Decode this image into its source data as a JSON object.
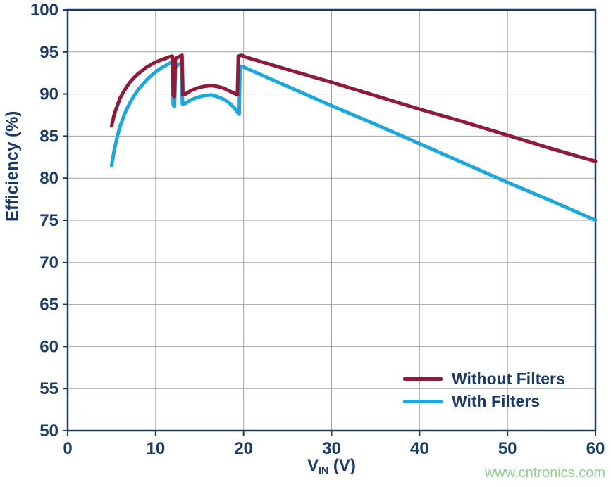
{
  "colors": {
    "axis": "#1a3a67",
    "grid": "#a3a3a3",
    "watermark": "#8fd08f",
    "background": "#ffffff"
  },
  "watermark": {
    "text": "www.cntronics.com"
  },
  "chart_data": {
    "type": "line",
    "title": "",
    "xlabel": {
      "main": "V",
      "sub": "IN",
      "unit": " (V)"
    },
    "ylabel": "Efficiency (%)",
    "xlim": [
      0,
      60
    ],
    "ylim": [
      50,
      100
    ],
    "x_ticks": [
      0,
      10,
      20,
      30,
      40,
      50,
      60
    ],
    "y_ticks": [
      50,
      55,
      60,
      65,
      70,
      75,
      80,
      85,
      90,
      95,
      100
    ],
    "grid": true,
    "legend_position": "bottom-right",
    "series": [
      {
        "name": "Without Filters",
        "color": "#8e1b3a",
        "points": [
          [
            5,
            86.2
          ],
          [
            5.3,
            87.6
          ],
          [
            5.7,
            88.8
          ],
          [
            6,
            89.6
          ],
          [
            6.5,
            90.5
          ],
          [
            7,
            91.3
          ],
          [
            7.5,
            91.9
          ],
          [
            8,
            92.4
          ],
          [
            8.5,
            92.8
          ],
          [
            9,
            93.2
          ],
          [
            9.5,
            93.5
          ],
          [
            10,
            93.8
          ],
          [
            10.5,
            94.0
          ],
          [
            11,
            94.2
          ],
          [
            11.5,
            94.4
          ],
          [
            11.9,
            94.5
          ],
          [
            12.0,
            89.9
          ],
          [
            12.15,
            89.7
          ],
          [
            12.25,
            94.2
          ],
          [
            12.6,
            94.4
          ],
          [
            13.0,
            94.6
          ],
          [
            13.1,
            89.9
          ],
          [
            13.4,
            90.0
          ],
          [
            14,
            90.4
          ],
          [
            14.7,
            90.7
          ],
          [
            15.5,
            90.9
          ],
          [
            16.3,
            91.0
          ],
          [
            17,
            90.9
          ],
          [
            17.7,
            90.7
          ],
          [
            18.3,
            90.4
          ],
          [
            18.9,
            90.1
          ],
          [
            19.3,
            89.9
          ],
          [
            19.4,
            94.5
          ],
          [
            19.8,
            94.6
          ],
          [
            20.2,
            94.4
          ],
          [
            25,
            92.9
          ],
          [
            30,
            91.4
          ],
          [
            35,
            89.8
          ],
          [
            40,
            88.2
          ],
          [
            45,
            86.7
          ],
          [
            50,
            85.1
          ],
          [
            55,
            83.5
          ],
          [
            60,
            82.0
          ]
        ]
      },
      {
        "name": "With Filters",
        "color": "#1ea7dd",
        "points": [
          [
            5,
            81.5
          ],
          [
            5.3,
            83.4
          ],
          [
            5.7,
            85.2
          ],
          [
            6,
            86.3
          ],
          [
            6.5,
            87.7
          ],
          [
            7,
            88.8
          ],
          [
            7.5,
            89.7
          ],
          [
            8,
            90.5
          ],
          [
            8.5,
            91.1
          ],
          [
            9,
            91.7
          ],
          [
            9.5,
            92.2
          ],
          [
            10,
            92.6
          ],
          [
            10.5,
            93.0
          ],
          [
            11,
            93.3
          ],
          [
            11.5,
            93.6
          ],
          [
            11.9,
            93.8
          ],
          [
            12.0,
            88.7
          ],
          [
            12.15,
            88.5
          ],
          [
            12.25,
            93.2
          ],
          [
            12.6,
            93.5
          ],
          [
            12.95,
            93.7
          ],
          [
            13.05,
            88.8
          ],
          [
            13.4,
            88.9
          ],
          [
            14,
            89.3
          ],
          [
            14.7,
            89.6
          ],
          [
            15.5,
            89.8
          ],
          [
            16.3,
            89.9
          ],
          [
            17,
            89.7
          ],
          [
            17.7,
            89.4
          ],
          [
            18.3,
            89.0
          ],
          [
            18.9,
            88.4
          ],
          [
            19.5,
            87.6
          ],
          [
            19.6,
            93.3
          ],
          [
            20.0,
            93.2
          ],
          [
            25,
            90.9
          ],
          [
            30,
            88.6
          ],
          [
            35,
            86.4
          ],
          [
            40,
            84.1
          ],
          [
            45,
            81.8
          ],
          [
            50,
            79.5
          ],
          [
            55,
            77.3
          ],
          [
            60,
            75.0
          ]
        ]
      }
    ]
  }
}
